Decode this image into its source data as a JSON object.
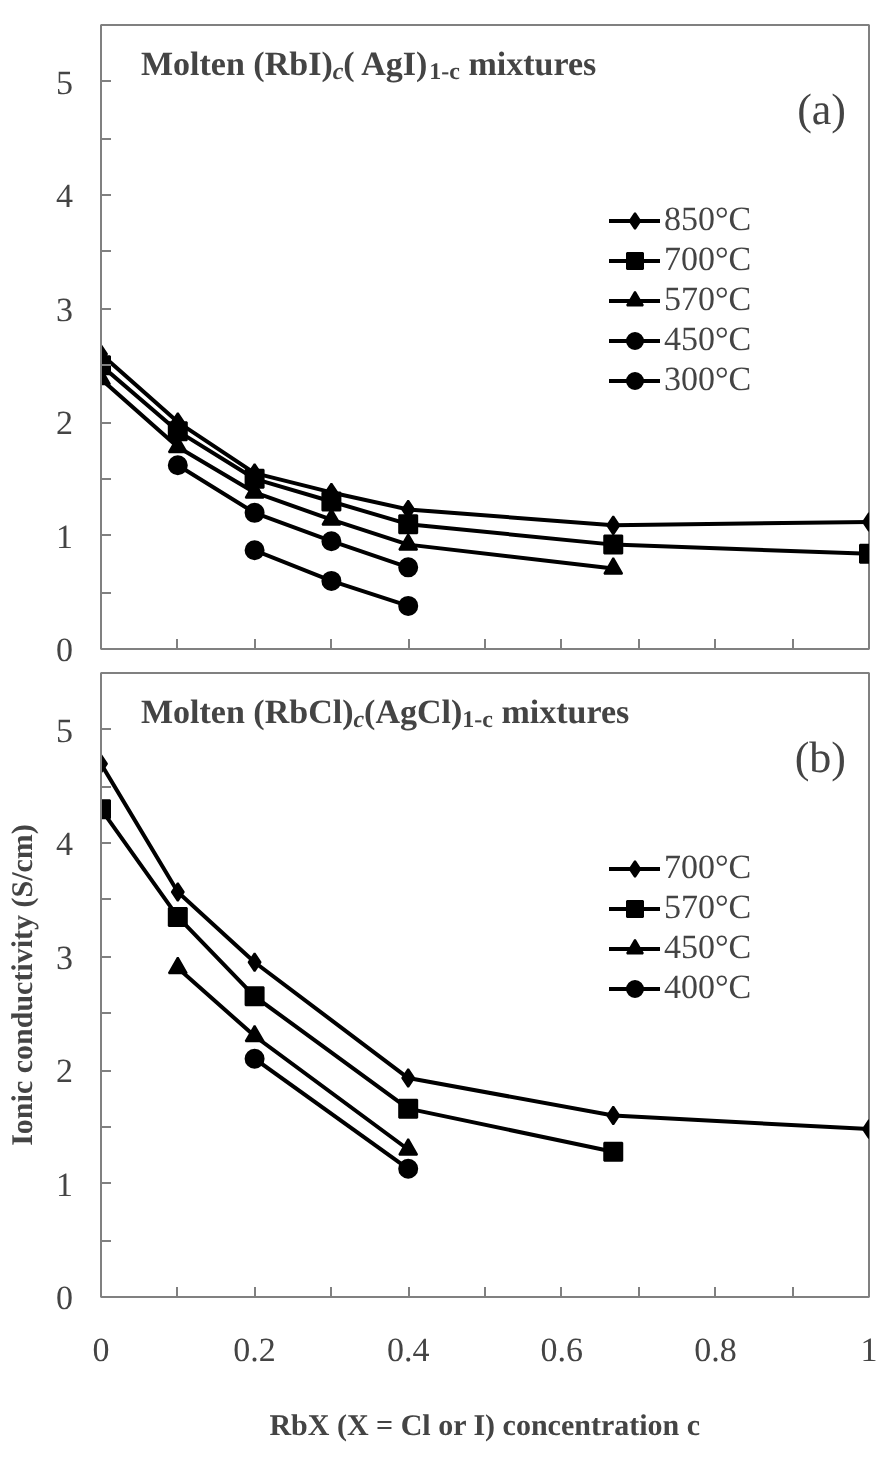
{
  "chart_data": [
    {
      "type": "line",
      "title": "Molten (RbI)$_{c}$( AgI)$_{1-c}$ mixtures",
      "annotations": [
        "(a)"
      ],
      "xlim": [
        0,
        1
      ],
      "ylim": [
        0,
        5.5
      ],
      "xticks": [
        0,
        {
          "value": 0.1,
          "label": null
        },
        {
          "value": 0.2,
          "label": null
        },
        {
          "value": 0.3,
          "label": null
        },
        {
          "value": 0.4,
          "label": null
        },
        {
          "value": 0.5,
          "label": null
        },
        {
          "value": 0.6,
          "label": null
        },
        {
          "value": 0.7,
          "label": null
        },
        {
          "value": 0.8,
          "label": null
        },
        {
          "value": 0.9,
          "label": null
        },
        {
          "value": 1,
          "label": null
        }
      ],
      "yticks": [
        0,
        {
          "value": 0.5,
          "label": null
        },
        1,
        {
          "value": 1.5,
          "label": null
        },
        2,
        {
          "value": 2.5,
          "label": null
        },
        3,
        {
          "value": 3.5,
          "label": null
        },
        4,
        {
          "value": 4.5,
          "label": null
        },
        5
      ],
      "tick_labels": "y",
      "grid": false,
      "legend": "top right",
      "line_style": "solid",
      "series": [
        {
          "name": "850°C",
          "color": "#000000",
          "marker": "diamond",
          "x": [
            0,
            0.1,
            0.2,
            0.3,
            0.4,
            0.667,
            1
          ],
          "values": [
            2.6,
            2.0,
            1.55,
            1.38,
            1.23,
            1.09,
            1.12
          ]
        },
        {
          "name": "700°C",
          "color": "#000000",
          "marker": "square",
          "x": [
            0,
            0.1,
            0.2,
            0.3,
            0.4,
            0.667,
            1
          ],
          "values": [
            2.5,
            1.92,
            1.5,
            1.3,
            1.1,
            0.92,
            0.84
          ]
        },
        {
          "name": "570°C",
          "color": "#000000",
          "marker": "triangle",
          "x": [
            0,
            0.1,
            0.2,
            0.3,
            0.4,
            0.667
          ],
          "values": [
            2.38,
            1.78,
            1.38,
            1.14,
            0.92,
            0.71
          ]
        },
        {
          "name": "450°C",
          "color": "#000000",
          "marker": "circle",
          "x": [
            0.1,
            0.2,
            0.3,
            0.4
          ],
          "values": [
            1.62,
            1.2,
            0.95,
            0.72
          ]
        },
        {
          "name": "300°C",
          "color": "#000000",
          "marker": "circle",
          "x": [
            0.2,
            0.3,
            0.4
          ],
          "values": [
            0.87,
            0.6,
            0.38
          ]
        }
      ]
    },
    {
      "type": "line",
      "title": "Molten (RbCl)$_{c}$(AgCl)$_{1-c}$ mixtures",
      "annotations": [
        "(b)"
      ],
      "xlabel": "RbX (X = Cl or I) concentration c",
      "ylabel": "Ionic conductivity (S/cm)",
      "xlim": [
        0,
        1
      ],
      "ylim": [
        0,
        5.5
      ],
      "xticks": [
        0,
        {
          "value": 0.1,
          "label": null
        },
        0.2,
        {
          "value": 0.3,
          "label": null
        },
        0.4,
        {
          "value": 0.5,
          "label": null
        },
        0.6,
        {
          "value": 0.7,
          "label": null
        },
        0.8,
        {
          "value": 0.9,
          "label": null
        },
        1
      ],
      "yticks": [
        0,
        {
          "value": 0.5,
          "label": null
        },
        1,
        {
          "value": 1.5,
          "label": null
        },
        2,
        {
          "value": 2.5,
          "label": null
        },
        3,
        {
          "value": 3.5,
          "label": null
        },
        4,
        {
          "value": 4.5,
          "label": null
        },
        5
      ],
      "grid": false,
      "legend": "top right",
      "line_style": "solid",
      "series": [
        {
          "name": "700°C",
          "color": "#000000",
          "marker": "diamond",
          "x": [
            0,
            0.1,
            0.2,
            0.4,
            0.667,
            1
          ],
          "values": [
            4.7,
            3.57,
            2.95,
            1.93,
            1.6,
            1.48
          ]
        },
        {
          "name": "570°C",
          "color": "#000000",
          "marker": "square",
          "x": [
            0,
            0.1,
            0.2,
            0.4,
            0.667
          ],
          "values": [
            4.3,
            3.35,
            2.65,
            1.66,
            1.28
          ]
        },
        {
          "name": "450°C",
          "color": "#000000",
          "marker": "triangle",
          "x": [
            0.1,
            0.2,
            0.4
          ],
          "values": [
            2.9,
            2.3,
            1.3
          ]
        },
        {
          "name": "400°C",
          "color": "#000000",
          "marker": "circle",
          "x": [
            0.2,
            0.4
          ],
          "values": [
            2.1,
            1.13
          ]
        }
      ]
    }
  ]
}
